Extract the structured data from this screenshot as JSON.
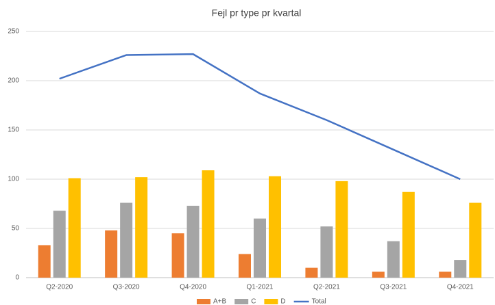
{
  "chart_data": {
    "type": "bar",
    "title": "Fejl pr type pr kvartal",
    "categories": [
      "Q2-2020",
      "Q3-2020",
      "Q4-2020",
      "Q1-2021",
      "Q2-2021",
      "Q3-2021",
      "Q4-2021"
    ],
    "series": [
      {
        "name": "A+B",
        "type": "bar",
        "color": "#ed7d31",
        "values": [
          33,
          48,
          45,
          24,
          10,
          6,
          6
        ]
      },
      {
        "name": "C",
        "type": "bar",
        "color": "#a5a5a5",
        "values": [
          68,
          76,
          73,
          60,
          52,
          37,
          18
        ]
      },
      {
        "name": "D",
        "type": "bar",
        "color": "#ffc000",
        "values": [
          101,
          102,
          109,
          103,
          98,
          87,
          76
        ]
      },
      {
        "name": "Total",
        "type": "line",
        "color": "#4472c4",
        "values": [
          202,
          226,
          227,
          187,
          160,
          130,
          100
        ]
      }
    ],
    "ylim": [
      0,
      250
    ],
    "yticks": [
      0,
      50,
      100,
      150,
      200,
      250
    ],
    "grid": true,
    "legend": "bottom"
  }
}
